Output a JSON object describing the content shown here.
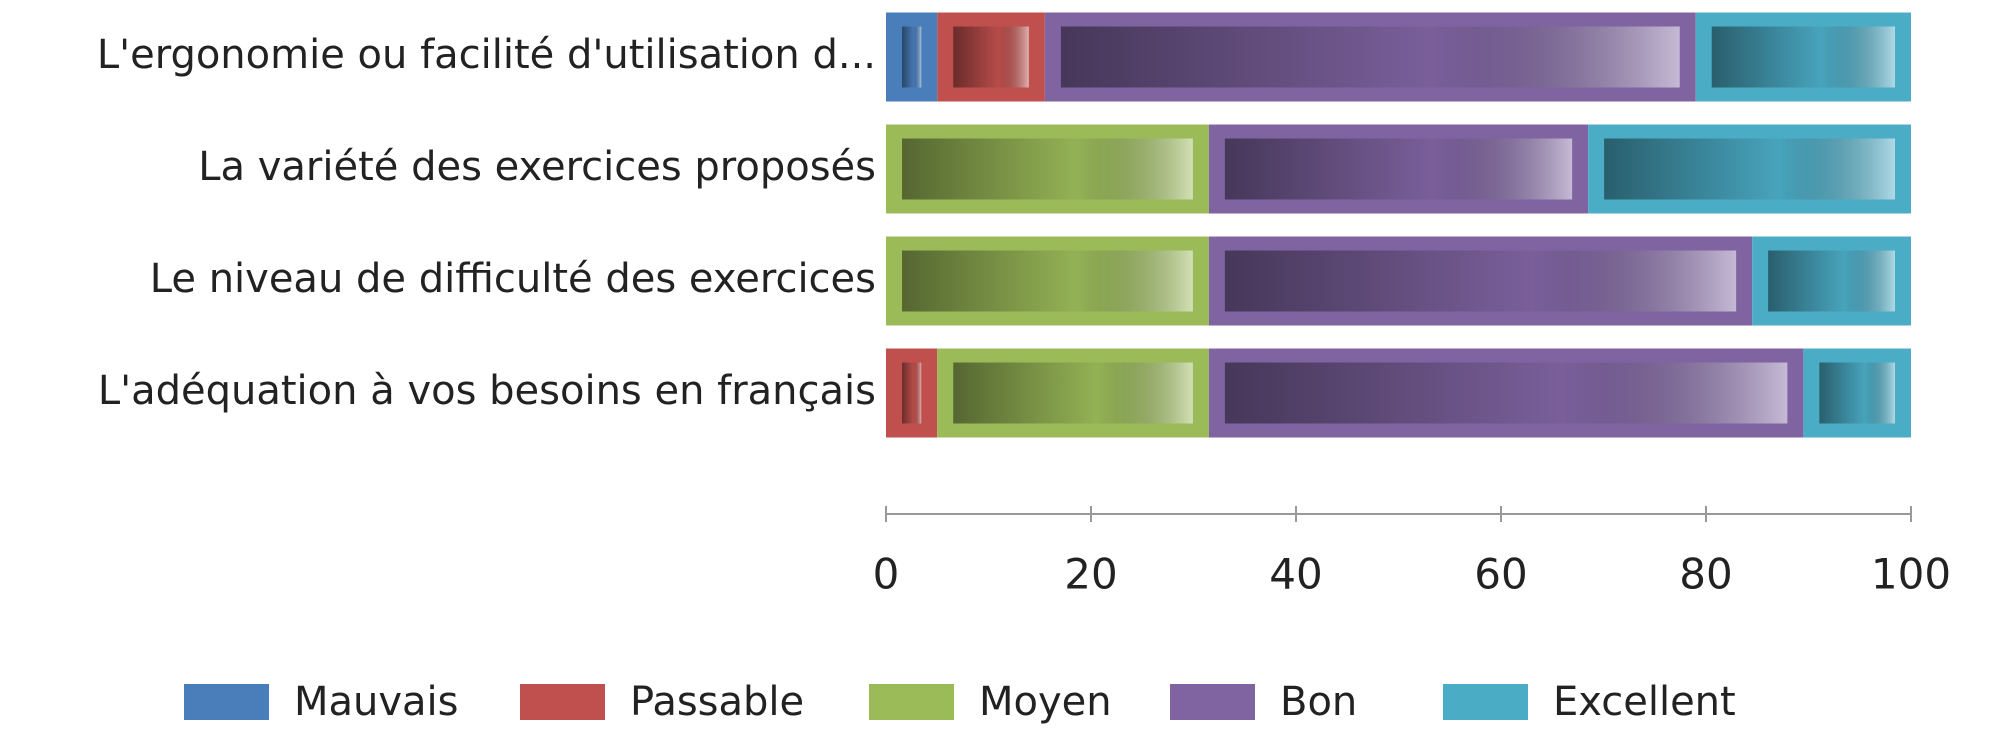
{
  "chart_data": {
    "type": "stacked-bar-horizontal",
    "categories": [
      "L'ergonomie ou facilité d'utilisation d...",
      "La variété des exercices proposés",
      "Le niveau de difficulté des exercices",
      "L'adéquation à vos besoins en français"
    ],
    "series": [
      {
        "name": "Mauvais",
        "color": "#4a7ebb",
        "values": [
          5,
          0,
          0,
          0
        ]
      },
      {
        "name": "Passable",
        "color": "#c0504d",
        "values": [
          10.5,
          0,
          0,
          5
        ]
      },
      {
        "name": "Moyen",
        "color": "#9bbb59",
        "values": [
          0,
          31.5,
          31.5,
          26.5
        ]
      },
      {
        "name": "Bon",
        "color": "#8064a2",
        "values": [
          63.5,
          37,
          53,
          58
        ]
      },
      {
        "name": "Excellent",
        "color": "#4bacc6",
        "values": [
          21,
          31.5,
          15.5,
          10.5
        ]
      }
    ],
    "xlim": [
      0,
      100
    ],
    "xticks": [
      0,
      20,
      40,
      60,
      80,
      100
    ],
    "legend": "bottom"
  }
}
